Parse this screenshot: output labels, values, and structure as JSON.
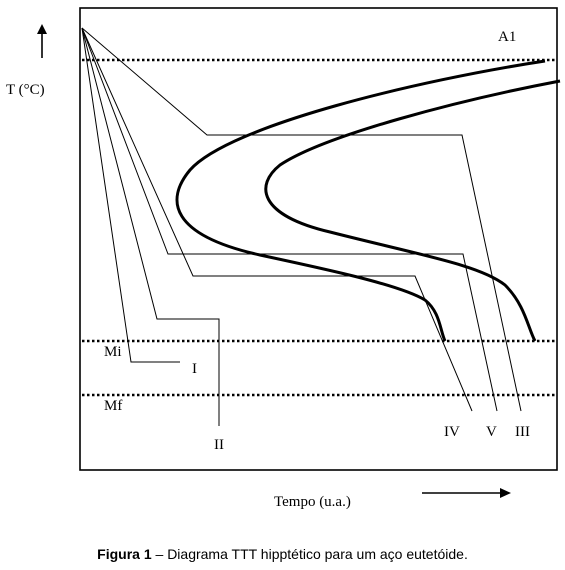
{
  "diagram": {
    "y_axis_label": "T (°C)",
    "x_axis_label": "Tempo (u.a.)",
    "lines": {
      "a1": "A1",
      "mi": "Mi",
      "mf": "Mf"
    },
    "path_labels": {
      "I": "I",
      "II": "II",
      "III": "III",
      "IV": "IV",
      "V": "V"
    }
  },
  "caption": {
    "prefix": "Figura 1",
    "text": " – Diagrama TTT hipptético para um aço eutetóide."
  }
}
